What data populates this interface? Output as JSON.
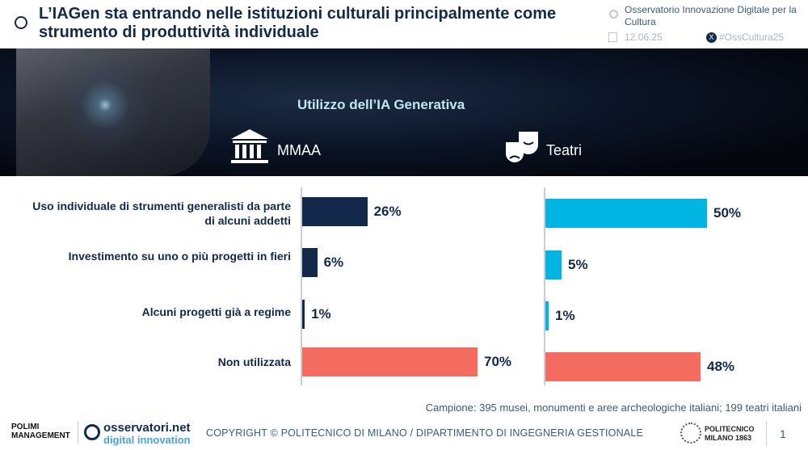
{
  "header": {
    "title": "L’IAGen sta entrando nelle istituzioni culturali principalmente come strumento di produttività individuale",
    "observatory": "Osservatorio Innovazione Digitale per la Cultura",
    "date": "12.06.25",
    "hashtag": "#OssCultura25"
  },
  "banner": {
    "subtitle": "Utilizzo dell’IA Generativa",
    "group_a": "MMAA",
    "group_b": "Teatri"
  },
  "chart_data": [
    {
      "type": "bar",
      "orientation": "horizontal",
      "title": "MMAA",
      "categories": [
        "Uso individuale di strumenti generalisti da parte di alcuni addetti",
        "Investimento su uno o più progetti in fieri",
        "Alcuni progetti già a regime",
        "Non utilizzata"
      ],
      "values": [
        26,
        6,
        1,
        70
      ],
      "labels": [
        "26%",
        "6%",
        "1%",
        "70%"
      ],
      "colors": [
        "#13294b",
        "#13294b",
        "#13294b",
        "#f36c5f"
      ]
    },
    {
      "type": "bar",
      "orientation": "horizontal",
      "title": "Teatri",
      "categories": [
        "Uso individuale di strumenti generalisti da parte di alcuni addetti",
        "Investimento su uno o più progetti in fieri",
        "Alcuni progetti già a regime",
        "Non utilizzata"
      ],
      "values": [
        50,
        5,
        1,
        48
      ],
      "labels": [
        "50%",
        "5%",
        "1%",
        "48%"
      ],
      "colors": [
        "#00b5e2",
        "#00b5e2",
        "#00b5e2",
        "#f36c5f"
      ]
    }
  ],
  "sample": "Campione: 395 musei, monumenti e aree archeologiche italiani; 199 teatri italiani",
  "footer": {
    "logo1": "POLIMI MANAGEMENT",
    "logo2_a": "osservatori.net",
    "logo2_b": "digital innovation",
    "copyright": "COPYRIGHT © POLITECNICO DI MILANO / DIPARTIMENTO DI INGEGNERIA GESTIONALE",
    "logo3": "POLITECNICO MILANO 1863",
    "page": "1"
  }
}
